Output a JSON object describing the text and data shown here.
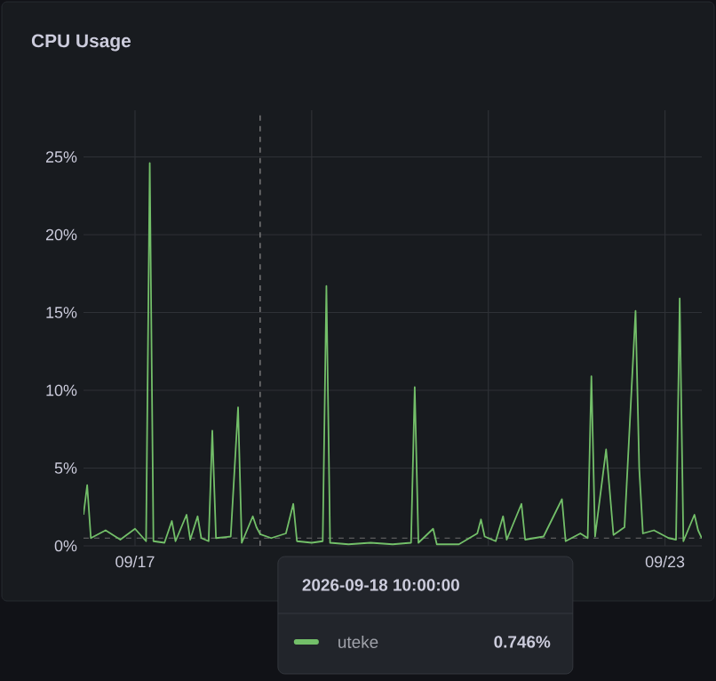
{
  "chart_data": {
    "type": "line",
    "title": "CPU Usage",
    "x": [
      "2026-09-16T10:00",
      "2026-09-16T11:00",
      "2026-09-16T12:00",
      "2026-09-16T16:00",
      "2026-09-16T20:00",
      "2026-09-17T00:00",
      "2026-09-17T03:00",
      "2026-09-17T04:00",
      "2026-09-17T05:00",
      "2026-09-17T08:00",
      "2026-09-17T10:00",
      "2026-09-17T11:00",
      "2026-09-17T14:00",
      "2026-09-17T15:00",
      "2026-09-17T17:00",
      "2026-09-17T18:00",
      "2026-09-17T20:00",
      "2026-09-17T21:00",
      "2026-09-17T22:00",
      "2026-09-18T02:00",
      "2026-09-18T04:00",
      "2026-09-18T05:00",
      "2026-09-18T08:00",
      "2026-09-18T09:00",
      "2026-09-18T10:00",
      "2026-09-18T13:00",
      "2026-09-18T17:00",
      "2026-09-18T19:00",
      "2026-09-18T20:00",
      "2026-09-19T00:00",
      "2026-09-19T03:00",
      "2026-09-19T04:00",
      "2026-09-19T05:00",
      "2026-09-19T10:00",
      "2026-09-19T16:00",
      "2026-09-19T22:00",
      "2026-09-20T03:00",
      "2026-09-20T04:00",
      "2026-09-20T05:00",
      "2026-09-20T09:00",
      "2026-09-20T10:00",
      "2026-09-20T16:00",
      "2026-09-20T21:00",
      "2026-09-20T22:00",
      "2026-09-20T23:00",
      "2026-09-21T02:00",
      "2026-09-21T04:00",
      "2026-09-21T05:00",
      "2026-09-21T09:00",
      "2026-09-21T10:00",
      "2026-09-21T15:00",
      "2026-09-21T20:00",
      "2026-09-21T21:00",
      "2026-09-22T01:00",
      "2026-09-22T03:00",
      "2026-09-22T04:00",
      "2026-09-22T05:00",
      "2026-09-22T08:00",
      "2026-09-22T09:00",
      "2026-09-22T10:00",
      "2026-09-22T13:00",
      "2026-09-22T16:00",
      "2026-09-22T17:00",
      "2026-09-22T18:00",
      "2026-09-22T21:00",
      "2026-09-23T01:00",
      "2026-09-23T03:00",
      "2026-09-23T04:00",
      "2026-09-23T05:00",
      "2026-09-23T08:00",
      "2026-09-23T09:00",
      "2026-09-23T10:00"
    ],
    "series": [
      {
        "name": "uteke",
        "color": "#73bf69",
        "values": [
          2.0,
          3.9,
          0.5,
          1.0,
          0.4,
          1.1,
          0.3,
          24.6,
          0.3,
          0.2,
          1.6,
          0.3,
          2.0,
          0.4,
          1.9,
          0.5,
          0.3,
          7.4,
          0.5,
          0.6,
          8.9,
          0.2,
          1.9,
          1.2,
          0.746,
          0.5,
          0.8,
          2.7,
          0.3,
          0.2,
          0.3,
          16.7,
          0.2,
          0.1,
          0.2,
          0.1,
          0.2,
          10.2,
          0.2,
          1.1,
          0.1,
          0.1,
          0.8,
          1.7,
          0.6,
          0.3,
          1.9,
          0.4,
          2.7,
          0.4,
          0.6,
          3.0,
          0.3,
          0.8,
          0.5,
          10.9,
          0.6,
          6.2,
          3.5,
          0.7,
          1.2,
          15.1,
          5.0,
          0.8,
          1.0,
          0.5,
          0.4,
          15.9,
          0.3,
          2.0,
          1.0,
          0.5
        ]
      }
    ],
    "xlim": [
      "2026-09-16T10:00",
      "2026-09-23T10:00"
    ],
    "xticks": [
      {
        "value": "2026-09-17",
        "label": "09/17"
      },
      {
        "value": "2026-09-19",
        "label": null
      },
      {
        "value": "2026-09-21",
        "label": null
      },
      {
        "value": "2026-09-23",
        "label": "09/23"
      }
    ],
    "ylim": [
      0,
      28
    ],
    "yticks": [
      {
        "value": 0,
        "label": "0%"
      },
      {
        "value": 5,
        "label": "5%"
      },
      {
        "value": 10,
        "label": "10%"
      },
      {
        "value": 15,
        "label": "15%"
      },
      {
        "value": 20,
        "label": "20%"
      },
      {
        "value": 25,
        "label": "25%"
      }
    ],
    "grid": true,
    "line_style": "solid",
    "ref_lines": [
      {
        "axis": "x",
        "value": "2026-09-18T10:00",
        "color": "#8e8e8e",
        "line_style": "dashed"
      },
      {
        "axis": "y",
        "value": 0.5,
        "color": "#6e6e6e",
        "line_style": "dashed"
      }
    ],
    "annotations": [
      "2026-09-18 10:00:00",
      "0.746%"
    ]
  }
}
